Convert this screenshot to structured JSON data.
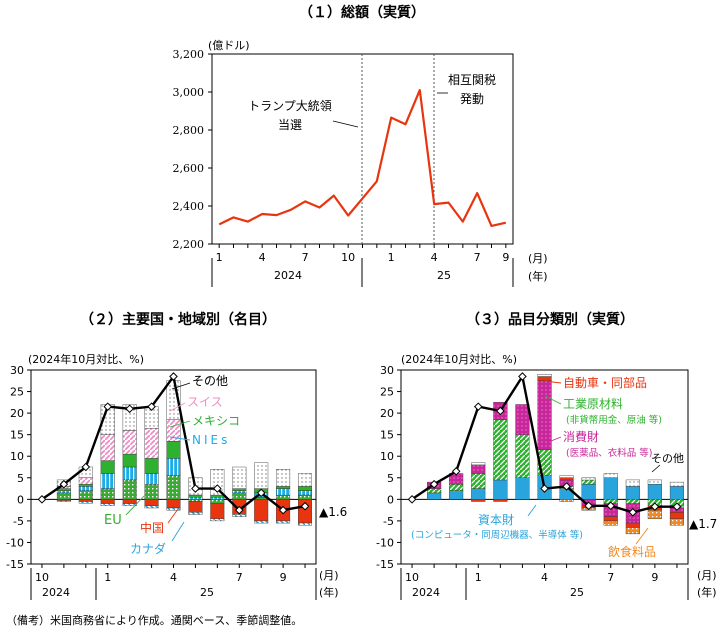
{
  "colors": {
    "line_red": "#e8350f",
    "eu": "#3aaa35",
    "china": "#e8350f",
    "canada": "#2aa4dc",
    "nies": "#1aaee8",
    "mexico": "#2eb12e",
    "swiss": "#f18bc8",
    "others": "#c9c9c9",
    "capital": "#2aa4dc",
    "industrial": "#2eb12e",
    "consumer": "#c8269a",
    "autos": "#e8350f",
    "food": "#f08a24"
  },
  "chart_data": [
    {
      "id": "total",
      "type": "line",
      "title": "（１）総額（実質）",
      "unit_label": "(億ドル)",
      "ylim": [
        2200,
        3200
      ],
      "yticks": [
        2200,
        2400,
        2600,
        2800,
        3000,
        3200
      ],
      "ytick_labels": [
        "2,200",
        "2,400",
        "2,600",
        "2,800",
        "3,000",
        "3,200"
      ],
      "xtick_labels": [
        "1",
        "4",
        "7",
        "10",
        "1",
        "4",
        "7",
        "9"
      ],
      "x_unit": [
        "(月)",
        "(年)"
      ],
      "year_labels": [
        "2024",
        "25"
      ],
      "series": [
        {
          "name": "総額",
          "values": [
            2303,
            2340,
            2318,
            2358,
            2352,
            2380,
            2424,
            2392,
            2455,
            2350,
            2440,
            2530,
            2865,
            2830,
            3010,
            2410,
            2418,
            2318,
            2468,
            2295,
            2312
          ]
        }
      ],
      "annotations": [
        "トランプ大統領",
        "当選",
        "相互関税",
        "発動"
      ]
    },
    {
      "id": "region",
      "type": "stacked-bar",
      "title": "（２）主要国・地域別（名目）",
      "unit_label": "(2024年10月対比、%)",
      "ylim": [
        -15,
        30
      ],
      "yticks": [
        -15,
        -10,
        -5,
        0,
        5,
        10,
        15,
        20,
        25,
        30
      ],
      "xtick_labels": [
        "10",
        "1",
        "4",
        "7",
        "9"
      ],
      "x_unit": [
        "(月)",
        "(年)"
      ],
      "year_labels": [
        "2024",
        "25"
      ],
      "series": [
        {
          "name": "EU",
          "values": [
            0,
            1.5,
            2,
            2.5,
            4.5,
            3.5,
            5.5,
            -0.5,
            -1,
            1.5,
            0.5,
            1,
            1
          ]
        },
        {
          "name": "中国",
          "values": [
            0,
            -0.3,
            -0.5,
            -1,
            -1,
            -1.5,
            -2,
            -2.5,
            -3.5,
            -3.5,
            -5,
            -5,
            -5.5
          ]
        },
        {
          "name": "カナダ",
          "values": [
            0,
            -0.2,
            -0.4,
            -0.5,
            -0.5,
            -0.5,
            -0.5,
            -0.5,
            -0.5,
            -0.5,
            -0.5,
            -0.5,
            -0.5
          ]
        },
        {
          "name": "NIEs",
          "values": [
            0,
            0.5,
            1,
            3.5,
            3,
            2.5,
            4,
            0.5,
            0.5,
            0.5,
            1,
            1.5,
            1
          ]
        },
        {
          "name": "メキシコ",
          "values": [
            0,
            0.5,
            0.5,
            3,
            3,
            3.5,
            4,
            0.5,
            0.5,
            0.5,
            1,
            0.5,
            1
          ]
        },
        {
          "name": "スイス",
          "values": [
            0,
            0.5,
            1.5,
            6,
            5.5,
            7,
            5,
            0,
            0,
            0,
            0,
            0,
            0
          ]
        },
        {
          "name": "その他",
          "values": [
            0,
            1.5,
            2.5,
            7,
            6,
            5,
            9,
            4,
            6,
            5,
            6,
            4,
            3
          ]
        }
      ],
      "line": {
        "name": "合計",
        "values": [
          0,
          3.5,
          7.5,
          21.5,
          21,
          21.5,
          28.5,
          2.5,
          2.5,
          -2.5,
          1.5,
          -2.5,
          -1.6
        ]
      },
      "last_value_label": "▲1.6",
      "legend": [
        "その他",
        "スイス",
        "メキシコ",
        "NIEs",
        "EU",
        "中国",
        "カナダ"
      ]
    },
    {
      "id": "product",
      "type": "stacked-bar",
      "title": "（３）品目分類別（実質）",
      "unit_label": "(2024年10月対比、%)",
      "ylim": [
        -15,
        30
      ],
      "yticks": [
        -15,
        -10,
        -5,
        0,
        5,
        10,
        15,
        20,
        25,
        30
      ],
      "xtick_labels": [
        "10",
        "1",
        "4",
        "7",
        "9"
      ],
      "x_unit": [
        "(月)",
        "(年)"
      ],
      "year_labels": [
        "2024",
        "25"
      ],
      "series": [
        {
          "name": "資本財",
          "values": [
            0,
            1.5,
            2,
            2.5,
            4.5,
            5,
            5.5,
            2.5,
            3.5,
            5,
            3,
            3.5,
            3
          ]
        },
        {
          "name": "工業原材料",
          "values": [
            0,
            1,
            1.5,
            3.5,
            14,
            10,
            6,
            0.5,
            1,
            -1,
            -1,
            -1.5,
            -2
          ]
        },
        {
          "name": "消費財",
          "values": [
            0,
            1.5,
            2.5,
            2,
            4,
            7,
            16,
            1.5,
            -1.5,
            -3,
            -4.5,
            0,
            -1
          ]
        },
        {
          "name": "自動車・同部品",
          "values": [
            0,
            0,
            0,
            -0.5,
            -0.5,
            0,
            1,
            0.5,
            -0.5,
            -1,
            -1,
            -1,
            -1.5
          ]
        },
        {
          "name": "飲食料品",
          "values": [
            0,
            0,
            0,
            0,
            0,
            0,
            0,
            -0.5,
            -0.5,
            -1,
            -1.5,
            -2,
            -1.5
          ]
        },
        {
          "name": "その他",
          "values": [
            0,
            0,
            0,
            0.5,
            0,
            0,
            0.5,
            0.5,
            0.5,
            1,
            1.5,
            1,
            1
          ]
        }
      ],
      "line": {
        "name": "合計",
        "values": [
          0,
          3.5,
          6.5,
          21.5,
          20.5,
          28.5,
          2.5,
          3,
          -1.5,
          -1.5,
          -3,
          -1.7,
          -1.7
        ]
      },
      "last_value_label": "▲1.7",
      "legend": [
        "自動車・同部品",
        "工業原材料",
        "(非貨幣用金、原油 等)",
        "消費財",
        "(医薬品、衣料品 等)",
        "その他",
        "資本財",
        "(コンピュータ・同周辺機器、半導体 等)",
        "飲食料品"
      ]
    }
  ],
  "footnote": "（備考）米国商務省により作成。通関ベース、季節調整値。"
}
